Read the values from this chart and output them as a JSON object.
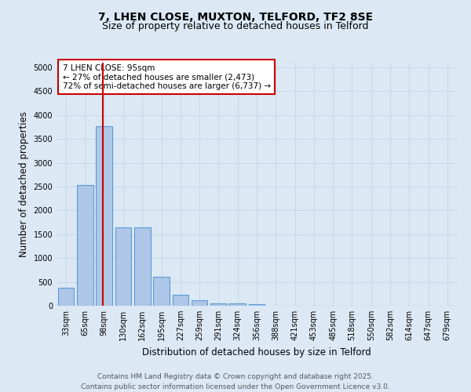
{
  "title_line1": "7, LHEN CLOSE, MUXTON, TELFORD, TF2 8SE",
  "title_line2": "Size of property relative to detached houses in Telford",
  "xlabel": "Distribution of detached houses by size in Telford",
  "ylabel": "Number of detached properties",
  "bar_labels": [
    "33sqm",
    "65sqm",
    "98sqm",
    "130sqm",
    "162sqm",
    "195sqm",
    "227sqm",
    "259sqm",
    "291sqm",
    "324sqm",
    "356sqm",
    "388sqm",
    "421sqm",
    "453sqm",
    "485sqm",
    "518sqm",
    "550sqm",
    "582sqm",
    "614sqm",
    "647sqm",
    "679sqm"
  ],
  "bar_values": [
    380,
    2530,
    3760,
    1650,
    1650,
    610,
    235,
    110,
    55,
    45,
    40,
    0,
    0,
    0,
    0,
    0,
    0,
    0,
    0,
    0,
    0
  ],
  "bar_color": "#aec6e8",
  "bar_edge_color": "#5b9bd5",
  "property_line_color": "#cc0000",
  "annotation_text": "7 LHEN CLOSE: 95sqm\n← 27% of detached houses are smaller (2,473)\n72% of semi-detached houses are larger (6,737) →",
  "annotation_box_color": "#ffffff",
  "annotation_box_edge": "#cc0000",
  "ylim": [
    0,
    5100
  ],
  "yticks": [
    0,
    500,
    1000,
    1500,
    2000,
    2500,
    3000,
    3500,
    4000,
    4500,
    5000
  ],
  "grid_color": "#c8d8e8",
  "background_color": "#dce9f5",
  "footer_line1": "Contains HM Land Registry data © Crown copyright and database right 2025.",
  "footer_line2": "Contains public sector information licensed under the Open Government Licence v3.0.",
  "title_fontsize": 10,
  "subtitle_fontsize": 9,
  "axis_label_fontsize": 8.5,
  "tick_fontsize": 7,
  "footer_fontsize": 6.5,
  "annot_fontsize": 7.5
}
